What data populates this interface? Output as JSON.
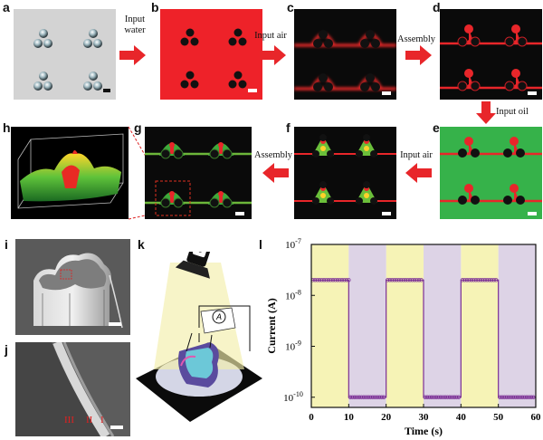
{
  "panels": {
    "a": "a",
    "b": "b",
    "c": "c",
    "d": "d",
    "e": "e",
    "f": "f",
    "g": "g",
    "h": "h",
    "i": "i",
    "j": "j",
    "k": "k",
    "l": "l"
  },
  "arrows": {
    "input_water": "Input water",
    "input_air_1": "Input air",
    "assembly_1": "Assembly",
    "input_oil": "Input oil",
    "input_air_2": "Input air",
    "assembly_2": "Assembly"
  },
  "sem_layers": {
    "l3": "III",
    "l2": "II",
    "l1": "I"
  },
  "meter_symbol": "A",
  "colors": {
    "red": "#e8262a",
    "green": "#36b24a",
    "black": "#0b0b0b",
    "yellow_band": "#f6f3b6",
    "purple_band": "#ddd3e6",
    "trace": "#7b2f95"
  },
  "chart_data": {
    "type": "line",
    "xlabel": "Time (s)",
    "ylabel": "Current (A)",
    "xlim": [
      0,
      60
    ],
    "ylim_exp": [
      -10.2,
      -7
    ],
    "log_y": true,
    "x_ticks": [
      "0",
      "10",
      "20",
      "30",
      "40",
      "50",
      "60"
    ],
    "y_ticks": [
      {
        "base": "10",
        "exp": "-7",
        "value": -7
      },
      {
        "base": "10",
        "exp": "-8",
        "value": -8
      },
      {
        "base": "10",
        "exp": "-9",
        "value": -9
      },
      {
        "base": "10",
        "exp": "-10",
        "value": -10
      }
    ],
    "on_intervals": [
      [
        0,
        10
      ],
      [
        20,
        30
      ],
      [
        40,
        50
      ]
    ],
    "off_intervals": [
      [
        10,
        20
      ],
      [
        30,
        40
      ],
      [
        50,
        60
      ]
    ],
    "on_current": 2e-08,
    "off_current": 1e-10,
    "series": [
      {
        "x": [
          0,
          10,
          10,
          20,
          20,
          30,
          30,
          40,
          40,
          50,
          50,
          60
        ],
        "y": [
          2e-08,
          2e-08,
          1e-10,
          1e-10,
          2e-08,
          2e-08,
          1e-10,
          1e-10,
          2e-08,
          2e-08,
          1e-10,
          1e-10
        ]
      }
    ]
  }
}
